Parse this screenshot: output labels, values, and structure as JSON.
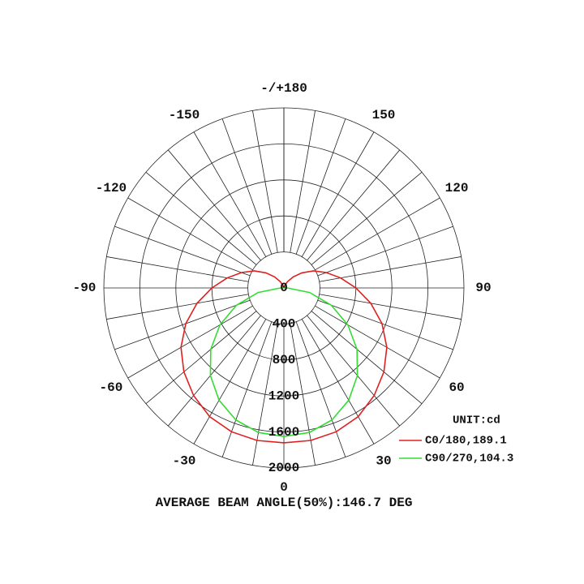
{
  "chart_data": {
    "type": "polar",
    "footer": "AVERAGE BEAM ANGLE(50%):146.7 DEG",
    "unit_label": "UNIT:cd",
    "angles": [
      -180,
      -170,
      -160,
      -150,
      -140,
      -130,
      -120,
      -110,
      -100,
      -90,
      -80,
      -70,
      -60,
      -50,
      -40,
      -30,
      -20,
      -10,
      0,
      10,
      20,
      30,
      40,
      50,
      60,
      70,
      80,
      90,
      100,
      110,
      120,
      130,
      140,
      150,
      160,
      170,
      180
    ],
    "angle_ticks": [
      {
        "value": 180,
        "label": "-/+180"
      },
      150,
      120,
      90,
      60,
      30,
      0,
      -30,
      -60,
      -90,
      -120,
      -150
    ],
    "rlim": [
      0,
      2000
    ],
    "rticks": [
      0,
      400,
      800,
      1200,
      1600,
      2000
    ],
    "grid": true,
    "series": [
      {
        "name": "C0/180,189.1",
        "color": "#e02020",
        "values": [
          0,
          5,
          30,
          80,
          160,
          260,
          380,
          500,
          640,
          800,
          980,
          1160,
          1320,
          1450,
          1560,
          1650,
          1700,
          1720,
          1720,
          1720,
          1700,
          1650,
          1560,
          1450,
          1320,
          1160,
          980,
          800,
          640,
          500,
          380,
          260,
          160,
          80,
          30,
          5,
          0
        ]
      },
      {
        "name": "C90/270,104.3",
        "color": "#33dd33",
        "values": [
          0,
          0,
          0,
          0,
          0,
          0,
          0,
          0,
          0,
          40,
          290,
          560,
          820,
          1060,
          1270,
          1440,
          1560,
          1630,
          1650,
          1630,
          1560,
          1440,
          1270,
          1060,
          820,
          560,
          290,
          40,
          0,
          0,
          0,
          0,
          0,
          0,
          0,
          0,
          0
        ]
      }
    ]
  }
}
